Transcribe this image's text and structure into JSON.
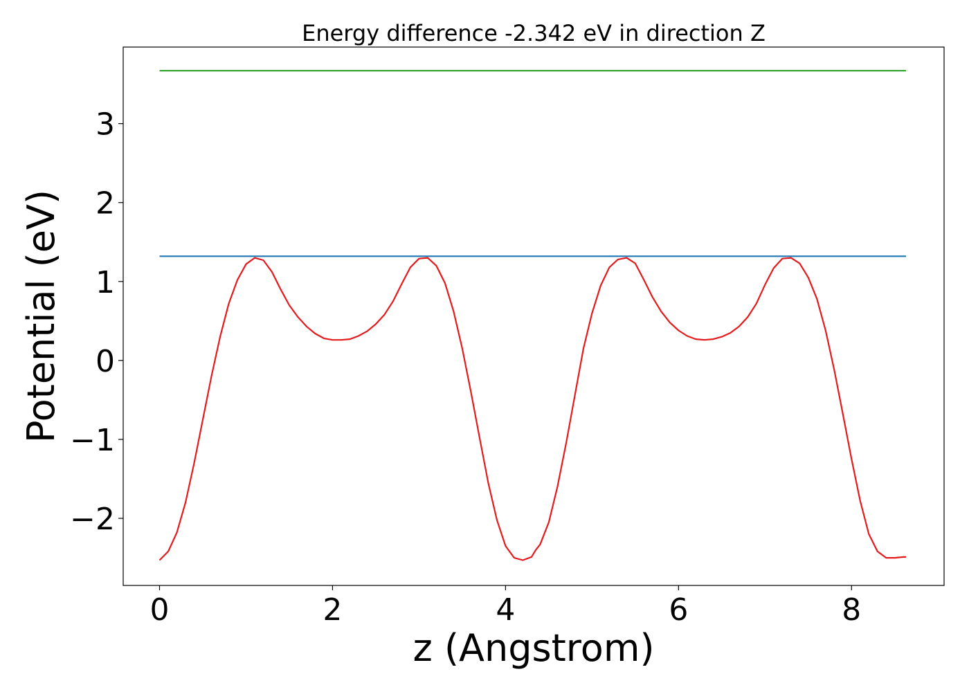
{
  "chart_data": {
    "type": "line",
    "title": "Energy difference -2.342 eV in direction Z",
    "xlabel": "z (Angstrom)",
    "ylabel": "Potential (eV)",
    "xlim": [
      -0.42,
      9.07
    ],
    "ylim": [
      -2.85,
      3.97
    ],
    "xticks": [
      0,
      2,
      4,
      6,
      8
    ],
    "xtick_labels": [
      "0",
      "2",
      "4",
      "6",
      "8"
    ],
    "yticks": [
      -2,
      -1,
      0,
      1,
      2,
      3
    ],
    "ytick_labels": [
      "−2",
      "−1",
      "0",
      "1",
      "2",
      "3"
    ],
    "grid": false,
    "series": [
      {
        "color": "#2ca02c",
        "x": [
          0,
          8.63
        ],
        "y": [
          3.67,
          3.67
        ]
      },
      {
        "color": "#1f77b4",
        "x": [
          0,
          8.63
        ],
        "y": [
          1.32,
          1.32
        ]
      },
      {
        "color": "#e41a1c",
        "x": [
          0,
          0.1,
          0.2,
          0.3,
          0.4,
          0.5,
          0.6,
          0.7,
          0.8,
          0.9,
          1.0,
          1.1,
          1.2,
          1.3,
          1.4,
          1.5,
          1.6,
          1.7,
          1.8,
          1.9,
          2.0,
          2.1,
          2.2,
          2.3,
          2.4,
          2.5,
          2.6,
          2.7,
          2.8,
          2.9,
          3.0,
          3.1,
          3.2,
          3.3,
          3.4,
          3.5,
          3.6,
          3.7,
          3.8,
          3.9,
          4.0,
          4.1,
          4.2,
          4.3,
          4.35,
          4.4,
          4.5,
          4.6,
          4.7,
          4.8,
          4.9,
          5.0,
          5.1,
          5.2,
          5.3,
          5.4,
          5.5,
          5.6,
          5.7,
          5.8,
          5.9,
          6.0,
          6.1,
          6.2,
          6.3,
          6.4,
          6.5,
          6.6,
          6.7,
          6.8,
          6.9,
          7.0,
          7.1,
          7.2,
          7.3,
          7.4,
          7.5,
          7.6,
          7.7,
          7.8,
          7.9,
          8.0,
          8.1,
          8.2,
          8.3,
          8.4,
          8.5,
          8.6,
          8.63
        ],
        "y": [
          -2.53,
          -2.42,
          -2.18,
          -1.8,
          -1.3,
          -0.75,
          -0.2,
          0.3,
          0.72,
          1.02,
          1.22,
          1.3,
          1.27,
          1.12,
          0.9,
          0.7,
          0.55,
          0.43,
          0.34,
          0.28,
          0.26,
          0.26,
          0.27,
          0.31,
          0.37,
          0.46,
          0.58,
          0.75,
          0.97,
          1.18,
          1.29,
          1.3,
          1.2,
          0.98,
          0.62,
          0.15,
          -0.4,
          -0.98,
          -1.55,
          -2.02,
          -2.35,
          -2.5,
          -2.53,
          -2.49,
          -2.4,
          -2.33,
          -2.05,
          -1.6,
          -1.05,
          -0.45,
          0.15,
          0.6,
          0.95,
          1.18,
          1.28,
          1.3,
          1.23,
          1.02,
          0.8,
          0.62,
          0.48,
          0.38,
          0.31,
          0.27,
          0.26,
          0.27,
          0.3,
          0.35,
          0.43,
          0.55,
          0.72,
          0.96,
          1.17,
          1.29,
          1.3,
          1.23,
          1.05,
          0.78,
          0.38,
          -0.12,
          -0.68,
          -1.25,
          -1.78,
          -2.2,
          -2.42,
          -2.5,
          -2.5,
          -2.49,
          -2.49
        ]
      }
    ]
  }
}
